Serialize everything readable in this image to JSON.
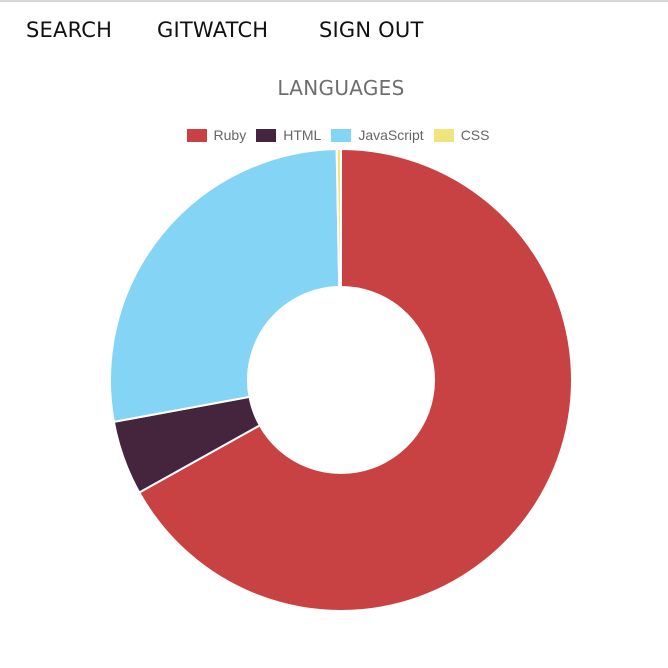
{
  "nav": {
    "search_label": "SEARCH",
    "gitwatch_label": "GITWATCH",
    "signout_label": "SIGN OUT"
  },
  "colors": {
    "ruby": "#c94243",
    "html": "#45243d",
    "javascript": "#84d5f5",
    "css": "#f0e57c"
  },
  "chart_data": {
    "type": "pie",
    "subtype": "doughnut",
    "title": "LANGUAGES",
    "legend_position": "top",
    "categories": [
      "Ruby",
      "HTML",
      "JavaScript",
      "CSS"
    ],
    "values": [
      66.9,
      5.2,
      27.6,
      0.3
    ],
    "colors": [
      "#c94243",
      "#45243d",
      "#84d5f5",
      "#f0e57c"
    ]
  }
}
